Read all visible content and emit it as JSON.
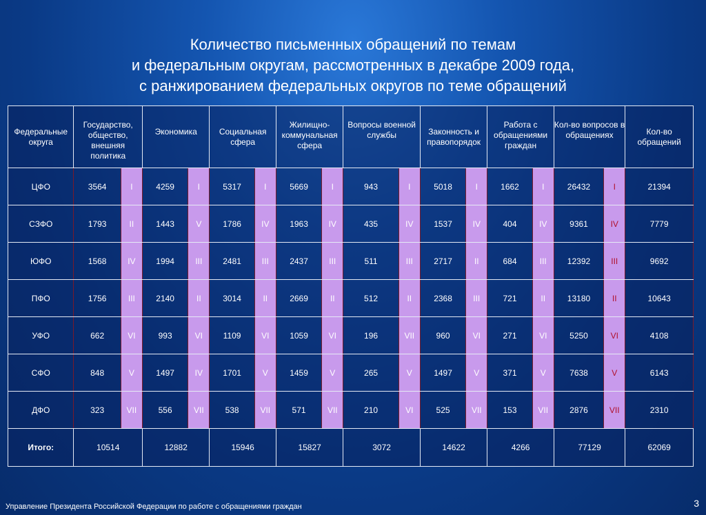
{
  "title": {
    "line1": "Количество письменных обращений по темам",
    "line2": "и федеральным округам, рассмотренных в декабре 2009 года,",
    "line3": "с ранжированием федеральных округов по теме обращений"
  },
  "table": {
    "headers": [
      "Федеральные округа",
      "Государство, общество, внешняя политика",
      "Экономика",
      "Социальная сфера",
      "Жилищно-коммунальная сфера",
      "Вопросы военной службы",
      "Законность и правопорядок",
      "Работа с обращениями граждан",
      "Кол-во вопросов в обращениях",
      "Кол-во обращений"
    ],
    "rows": [
      {
        "district": "ЦФО",
        "cells": [
          [
            "3564",
            "I"
          ],
          [
            "4259",
            "I"
          ],
          [
            "5317",
            "I"
          ],
          [
            "5669",
            "I"
          ],
          [
            "943",
            "I"
          ],
          [
            "5018",
            "I"
          ],
          [
            "1662",
            "I"
          ],
          [
            "26432",
            "I"
          ]
        ],
        "total": "21394"
      },
      {
        "district": "СЗФО",
        "cells": [
          [
            "1793",
            "II"
          ],
          [
            "1443",
            "V"
          ],
          [
            "1786",
            "IV"
          ],
          [
            "1963",
            "IV"
          ],
          [
            "435",
            "IV"
          ],
          [
            "1537",
            "IV"
          ],
          [
            "404",
            "IV"
          ],
          [
            "9361",
            "IV"
          ]
        ],
        "total": "7779"
      },
      {
        "district": "ЮФО",
        "cells": [
          [
            "1568",
            "IV"
          ],
          [
            "1994",
            "III"
          ],
          [
            "2481",
            "III"
          ],
          [
            "2437",
            "III"
          ],
          [
            "511",
            "III"
          ],
          [
            "2717",
            "II"
          ],
          [
            "684",
            "III"
          ],
          [
            "12392",
            "III"
          ]
        ],
        "total": "9692"
      },
      {
        "district": "ПФО",
        "cells": [
          [
            "1756",
            "III"
          ],
          [
            "2140",
            "II"
          ],
          [
            "3014",
            "II"
          ],
          [
            "2669",
            "II"
          ],
          [
            "512",
            "II"
          ],
          [
            "2368",
            "III"
          ],
          [
            "721",
            "II"
          ],
          [
            "13180",
            "II"
          ]
        ],
        "total": "10643"
      },
      {
        "district": "УФО",
        "cells": [
          [
            "662",
            "VI"
          ],
          [
            "993",
            "VI"
          ],
          [
            "1109",
            "VI"
          ],
          [
            "1059",
            "VI"
          ],
          [
            "196",
            "VII"
          ],
          [
            "960",
            "VI"
          ],
          [
            "271",
            "VI"
          ],
          [
            "5250",
            "VI"
          ]
        ],
        "total": "4108"
      },
      {
        "district": "СФО",
        "cells": [
          [
            "848",
            "V"
          ],
          [
            "1497",
            "IV"
          ],
          [
            "1701",
            "V"
          ],
          [
            "1459",
            "V"
          ],
          [
            "265",
            "V"
          ],
          [
            "1497",
            "V"
          ],
          [
            "371",
            "V"
          ],
          [
            "7638",
            "V"
          ]
        ],
        "total": "6143"
      },
      {
        "district": "ДФО",
        "cells": [
          [
            "323",
            "VII"
          ],
          [
            "556",
            "VII"
          ],
          [
            "538",
            "VII"
          ],
          [
            "571",
            "VII"
          ],
          [
            "210",
            "VI"
          ],
          [
            "525",
            "VII"
          ],
          [
            "153",
            "VII"
          ],
          [
            "2876",
            "VII"
          ]
        ],
        "total": "2310"
      }
    ],
    "totals": {
      "label": "Итого:",
      "values": [
        "10514",
        "12882",
        "15946",
        "15827",
        "3072",
        "14622",
        "4266",
        "77129",
        "62069"
      ]
    }
  },
  "footer": {
    "text": "Управление Президента Российской Федерации по работе с обращениями граждан",
    "page_number": "3"
  },
  "colors": {
    "rank_cell": "#c89aec",
    "background": "#0a3a86"
  }
}
